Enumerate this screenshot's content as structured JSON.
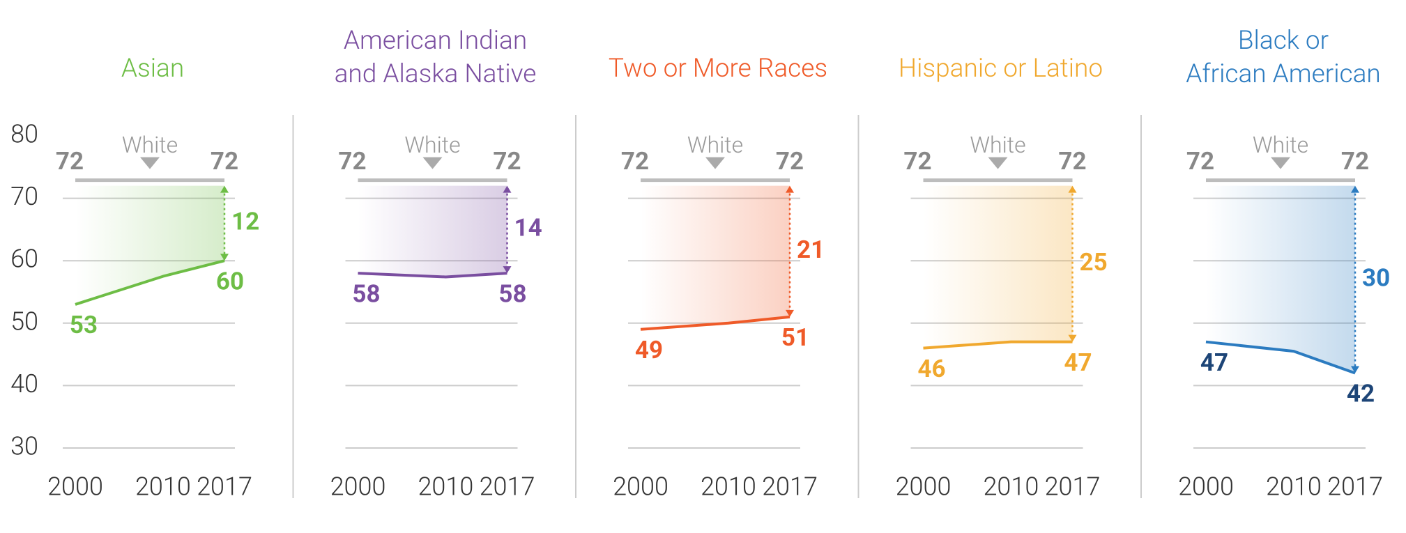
{
  "chart_data": [
    {
      "type": "line",
      "title": [
        "Asian"
      ],
      "color": "#6dbd45",
      "label_color": "#6dbd45",
      "x": [
        2000,
        2010,
        2017
      ],
      "values": [
        53,
        57.5,
        60
      ],
      "xlim": [
        2000,
        2017
      ],
      "xticks": [
        2000,
        2010,
        2017
      ],
      "ylim": [
        30,
        80
      ],
      "yticks": [
        30,
        40,
        50,
        60,
        70,
        80
      ],
      "grid": true,
      "reference": {
        "name": "White",
        "x": [
          2000,
          2017
        ],
        "values": [
          72,
          72
        ]
      },
      "gap": 12
    },
    {
      "type": "line",
      "title": [
        "American Indian",
        "and Alaska Native"
      ],
      "color": "#7a4ea0",
      "label_color": "#7a4ea0",
      "x": [
        2000,
        2010,
        2017
      ],
      "values": [
        58,
        57.4,
        58
      ],
      "xlim": [
        2000,
        2017
      ],
      "xticks": [
        2000,
        2010,
        2017
      ],
      "ylim": [
        30,
        80
      ],
      "yticks": [
        30,
        40,
        50,
        60,
        70,
        80
      ],
      "grid": true,
      "reference": {
        "name": "White",
        "x": [
          2000,
          2017
        ],
        "values": [
          72,
          72
        ]
      },
      "gap": 14
    },
    {
      "type": "line",
      "title": [
        "Two or More Races"
      ],
      "color": "#ef5a28",
      "label_color": "#ef5a28",
      "x": [
        2000,
        2010,
        2017
      ],
      "values": [
        49,
        50,
        51
      ],
      "xlim": [
        2000,
        2017
      ],
      "xticks": [
        2000,
        2010,
        2017
      ],
      "ylim": [
        30,
        80
      ],
      "yticks": [
        30,
        40,
        50,
        60,
        70,
        80
      ],
      "grid": true,
      "reference": {
        "name": "White",
        "x": [
          2000,
          2017
        ],
        "values": [
          72,
          72
        ]
      },
      "gap": 21
    },
    {
      "type": "line",
      "title": [
        "Hispanic or Latino"
      ],
      "color": "#f0a82e",
      "label_color": "#f0a82e",
      "x": [
        2000,
        2010,
        2017
      ],
      "values": [
        46,
        47,
        47
      ],
      "xlim": [
        2000,
        2017
      ],
      "xticks": [
        2000,
        2010,
        2017
      ],
      "ylim": [
        30,
        80
      ],
      "yticks": [
        30,
        40,
        50,
        60,
        70,
        80
      ],
      "grid": true,
      "reference": {
        "name": "White",
        "x": [
          2000,
          2017
        ],
        "values": [
          72,
          72
        ]
      },
      "gap": 25
    },
    {
      "type": "line",
      "title": [
        "Black or",
        "African American"
      ],
      "color": "#2b7bc0",
      "label_color": "#1d4577",
      "x": [
        2000,
        2010,
        2017
      ],
      "values": [
        47,
        45.5,
        42
      ],
      "xlim": [
        2000,
        2017
      ],
      "xticks": [
        2000,
        2010,
        2017
      ],
      "ylim": [
        30,
        80
      ],
      "yticks": [
        30,
        40,
        50,
        60,
        70,
        80
      ],
      "grid": true,
      "reference": {
        "name": "White",
        "x": [
          2000,
          2017
        ],
        "values": [
          72,
          72
        ]
      },
      "gap": 30
    }
  ]
}
